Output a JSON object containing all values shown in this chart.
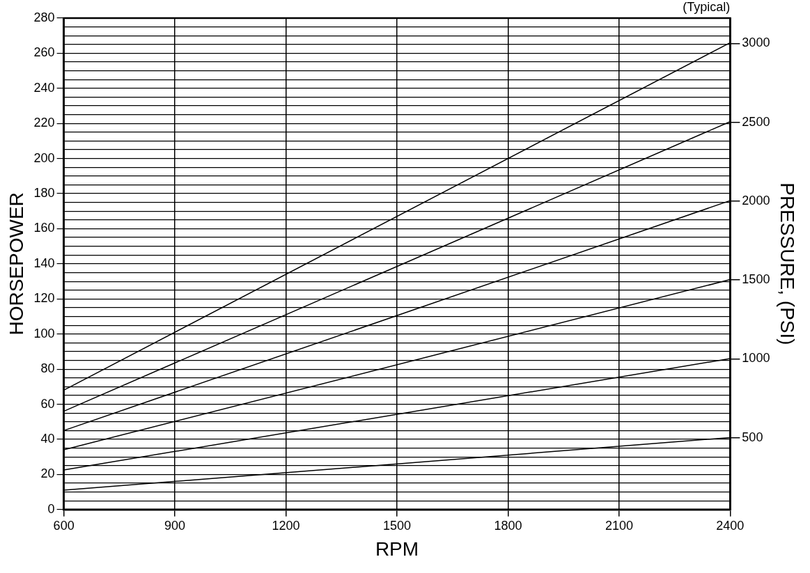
{
  "chart_data": {
    "type": "line",
    "subtitle": "(Typical)",
    "xlabel": "RPM",
    "ylabel": "HORSEPOWER",
    "y2label": "PRESSURE, (PSI)",
    "x": [
      600,
      2400
    ],
    "series": [
      {
        "color": "#000000",
        "values": [
          11,
          41
        ]
      },
      {
        "color": "#000000",
        "values": [
          22.5,
          86
        ]
      },
      {
        "color": "#000000",
        "values": [
          34,
          131
        ]
      },
      {
        "color": "#000000",
        "values": [
          45,
          176
        ]
      },
      {
        "color": "#000000",
        "values": [
          56,
          221
        ]
      },
      {
        "color": "#000000",
        "values": [
          68,
          266
        ]
      }
    ],
    "xlim": [
      600,
      2400
    ],
    "xticks": [
      600,
      900,
      1200,
      1500,
      1800,
      2100,
      2400
    ],
    "ylim": [
      0,
      280
    ],
    "yticks": [
      0,
      {
        "value": 5,
        "label": null
      },
      {
        "value": 10,
        "label": null
      },
      {
        "value": 15,
        "label": null
      },
      20,
      {
        "value": 25,
        "label": null
      },
      {
        "value": 30,
        "label": null
      },
      {
        "value": 35,
        "label": null
      },
      40,
      {
        "value": 45,
        "label": null
      },
      {
        "value": 50,
        "label": null
      },
      {
        "value": 55,
        "label": null
      },
      60,
      {
        "value": 65,
        "label": null
      },
      {
        "value": 70,
        "label": null
      },
      {
        "value": 75,
        "label": null
      },
      80,
      {
        "value": 85,
        "label": null
      },
      {
        "value": 90,
        "label": null
      },
      {
        "value": 95,
        "label": null
      },
      100,
      {
        "value": 105,
        "label": null
      },
      {
        "value": 110,
        "label": null
      },
      {
        "value": 115,
        "label": null
      },
      120,
      {
        "value": 125,
        "label": null
      },
      {
        "value": 130,
        "label": null
      },
      {
        "value": 135,
        "label": null
      },
      140,
      {
        "value": 145,
        "label": null
      },
      {
        "value": 150,
        "label": null
      },
      {
        "value": 155,
        "label": null
      },
      160,
      {
        "value": 165,
        "label": null
      },
      {
        "value": 170,
        "label": null
      },
      {
        "value": 175,
        "label": null
      },
      180,
      {
        "value": 185,
        "label": null
      },
      {
        "value": 190,
        "label": null
      },
      {
        "value": 195,
        "label": null
      },
      200,
      {
        "value": 205,
        "label": null
      },
      {
        "value": 210,
        "label": null
      },
      {
        "value": 215,
        "label": null
      },
      220,
      {
        "value": 225,
        "label": null
      },
      {
        "value": 230,
        "label": null
      },
      {
        "value": 235,
        "label": null
      },
      240,
      {
        "value": 245,
        "label": null
      },
      {
        "value": 250,
        "label": null
      },
      {
        "value": 255,
        "label": null
      },
      260,
      {
        "value": 265,
        "label": null
      },
      {
        "value": 270,
        "label": null
      },
      {
        "value": 275,
        "label": null
      },
      280
    ],
    "y2lim": [
      45,
      3160
    ],
    "y2ticks": [
      500,
      1000,
      1500,
      2000,
      2500,
      3000
    ],
    "grid": true,
    "marker": "none",
    "line_style": "solid",
    "legend": false
  }
}
